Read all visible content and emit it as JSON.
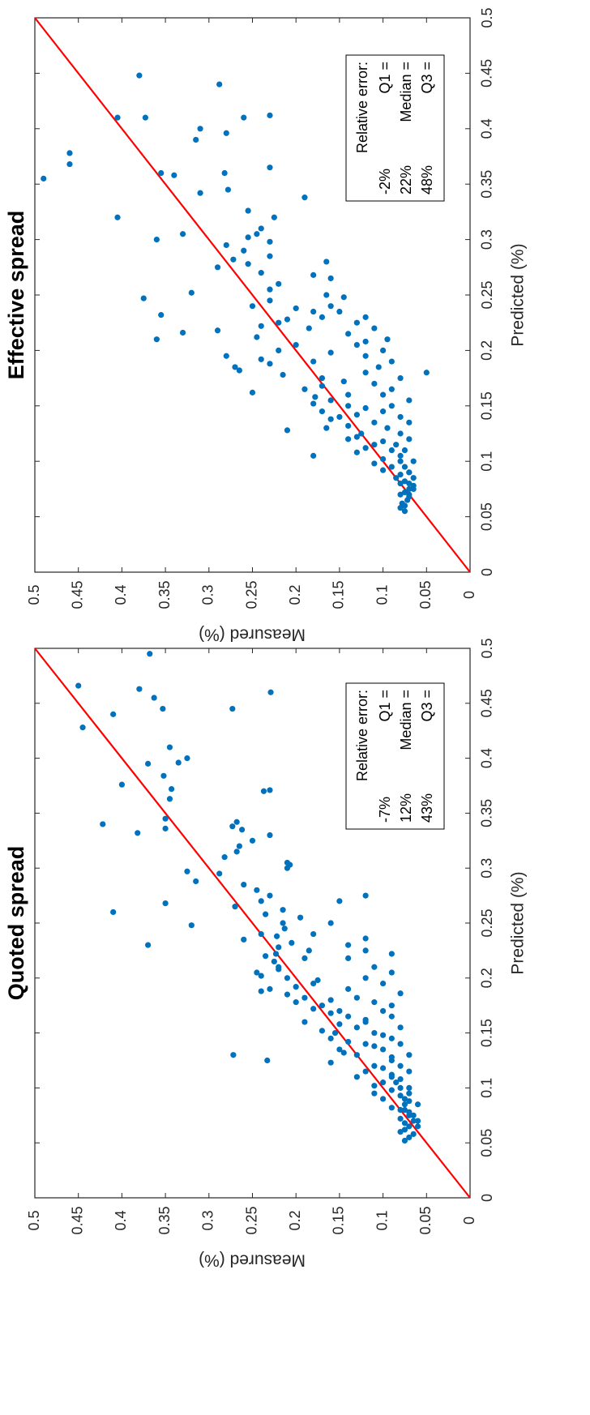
{
  "colors": {
    "points": "#0072BD",
    "line": "#FF0000",
    "axis": "#262626",
    "box_border": "#000000"
  },
  "chart_data": [
    {
      "type": "scatter",
      "title": "Quoted spread",
      "xlabel": "Predicted (%)",
      "ylabel": "Measured (%)",
      "xlim": [
        0,
        0.5
      ],
      "ylim": [
        0,
        0.5
      ],
      "x_ticks": [
        "0",
        "0.05",
        "0.1",
        "0.15",
        "0.2",
        "0.25",
        "0.3",
        "0.35",
        "0.4",
        "0.45",
        "0.5"
      ],
      "y_ticks": [
        "0",
        "0.05",
        "0.1",
        "0.15",
        "0.2",
        "0.25",
        "0.3",
        "0.35",
        "0.4",
        "0.45",
        "0.5"
      ],
      "reference_line": {
        "from": [
          0,
          0
        ],
        "to": [
          0.5,
          0.5
        ]
      },
      "relative_error_box": {
        "heading": "Relative error:",
        "rows": [
          {
            "label": "Q1 =",
            "value": "-7%"
          },
          {
            "label": "Median =",
            "value": "12%"
          },
          {
            "label": "Q3 =",
            "value": "43%"
          }
        ]
      },
      "points": [
        [
          0.495,
          0.368
        ],
        [
          0.466,
          0.45
        ],
        [
          0.46,
          0.229
        ],
        [
          0.463,
          0.38
        ],
        [
          0.455,
          0.363
        ],
        [
          0.445,
          0.353
        ],
        [
          0.445,
          0.273
        ],
        [
          0.44,
          0.41
        ],
        [
          0.428,
          0.445
        ],
        [
          0.41,
          0.345
        ],
        [
          0.4,
          0.325
        ],
        [
          0.396,
          0.335
        ],
        [
          0.395,
          0.37
        ],
        [
          0.384,
          0.352
        ],
        [
          0.376,
          0.4
        ],
        [
          0.372,
          0.343
        ],
        [
          0.37,
          0.237
        ],
        [
          0.371,
          0.23
        ],
        [
          0.363,
          0.345
        ],
        [
          0.345,
          0.35
        ],
        [
          0.342,
          0.268
        ],
        [
          0.34,
          0.422
        ],
        [
          0.338,
          0.273
        ],
        [
          0.335,
          0.262
        ],
        [
          0.332,
          0.382
        ],
        [
          0.336,
          0.35
        ],
        [
          0.33,
          0.23
        ],
        [
          0.325,
          0.25
        ],
        [
          0.32,
          0.265
        ],
        [
          0.315,
          0.268
        ],
        [
          0.31,
          0.282
        ],
        [
          0.305,
          0.21
        ],
        [
          0.303,
          0.207
        ],
        [
          0.3,
          0.21
        ],
        [
          0.297,
          0.325
        ],
        [
          0.295,
          0.288
        ],
        [
          0.288,
          0.315
        ],
        [
          0.285,
          0.26
        ],
        [
          0.28,
          0.245
        ],
        [
          0.275,
          0.23
        ],
        [
          0.27,
          0.24
        ],
        [
          0.268,
          0.35
        ],
        [
          0.265,
          0.27
        ],
        [
          0.262,
          0.215
        ],
        [
          0.26,
          0.41
        ],
        [
          0.258,
          0.235
        ],
        [
          0.255,
          0.195
        ],
        [
          0.25,
          0.215
        ],
        [
          0.248,
          0.32
        ],
        [
          0.245,
          0.213
        ],
        [
          0.24,
          0.24
        ],
        [
          0.238,
          0.222
        ],
        [
          0.235,
          0.26
        ],
        [
          0.232,
          0.205
        ],
        [
          0.23,
          0.37
        ],
        [
          0.228,
          0.22
        ],
        [
          0.225,
          0.185
        ],
        [
          0.222,
          0.223
        ],
        [
          0.22,
          0.235
        ],
        [
          0.218,
          0.19
        ],
        [
          0.215,
          0.225
        ],
        [
          0.21,
          0.22
        ],
        [
          0.208,
          0.22
        ],
        [
          0.205,
          0.245
        ],
        [
          0.202,
          0.24
        ],
        [
          0.2,
          0.21
        ],
        [
          0.198,
          0.175
        ],
        [
          0.195,
          0.18
        ],
        [
          0.192,
          0.2
        ],
        [
          0.19,
          0.23
        ],
        [
          0.188,
          0.24
        ],
        [
          0.185,
          0.21
        ],
        [
          0.182,
          0.19
        ],
        [
          0.18,
          0.16
        ],
        [
          0.178,
          0.2
        ],
        [
          0.175,
          0.17
        ],
        [
          0.172,
          0.18
        ],
        [
          0.17,
          0.15
        ],
        [
          0.168,
          0.16
        ],
        [
          0.165,
          0.14
        ],
        [
          0.162,
          0.12
        ],
        [
          0.16,
          0.19
        ],
        [
          0.158,
          0.15
        ],
        [
          0.155,
          0.13
        ],
        [
          0.152,
          0.17
        ],
        [
          0.15,
          0.155
        ],
        [
          0.148,
          0.1
        ],
        [
          0.145,
          0.16
        ],
        [
          0.142,
          0.14
        ],
        [
          0.14,
          0.12
        ],
        [
          0.138,
          0.11
        ],
        [
          0.135,
          0.15
        ],
        [
          0.132,
          0.145
        ],
        [
          0.13,
          0.13
        ],
        [
          0.128,
          0.09
        ],
        [
          0.125,
          0.233
        ],
        [
          0.123,
          0.16
        ],
        [
          0.12,
          0.11
        ],
        [
          0.118,
          0.1
        ],
        [
          0.115,
          0.12
        ],
        [
          0.112,
          0.09
        ],
        [
          0.11,
          0.13
        ],
        [
          0.108,
          0.08
        ],
        [
          0.105,
          0.1
        ],
        [
          0.102,
          0.11
        ],
        [
          0.1,
          0.07
        ],
        [
          0.098,
          0.09
        ],
        [
          0.095,
          0.11
        ],
        [
          0.093,
          0.08
        ],
        [
          0.09,
          0.1
        ],
        [
          0.088,
          0.07
        ],
        [
          0.085,
          0.075
        ],
        [
          0.082,
          0.09
        ],
        [
          0.08,
          0.08
        ],
        [
          0.078,
          0.07
        ],
        [
          0.075,
          0.065
        ],
        [
          0.072,
          0.08
        ],
        [
          0.07,
          0.06
        ],
        [
          0.068,
          0.075
        ],
        [
          0.065,
          0.07
        ],
        [
          0.062,
          0.075
        ],
        [
          0.06,
          0.08
        ],
        [
          0.058,
          0.065
        ],
        [
          0.055,
          0.07
        ],
        [
          0.052,
          0.075
        ],
        [
          0.13,
          0.272
        ],
        [
          0.25,
          0.16
        ],
        [
          0.27,
          0.15
        ],
        [
          0.275,
          0.12
        ],
        [
          0.24,
          0.18
        ],
        [
          0.236,
          0.12
        ],
        [
          0.23,
          0.14
        ],
        [
          0.225,
          0.12
        ],
        [
          0.222,
          0.09
        ],
        [
          0.218,
          0.14
        ],
        [
          0.21,
          0.11
        ],
        [
          0.205,
          0.09
        ],
        [
          0.2,
          0.12
        ],
        [
          0.195,
          0.1
        ],
        [
          0.19,
          0.14
        ],
        [
          0.186,
          0.08
        ],
        [
          0.182,
          0.13
        ],
        [
          0.178,
          0.11
        ],
        [
          0.175,
          0.09
        ],
        [
          0.17,
          0.1
        ],
        [
          0.165,
          0.09
        ],
        [
          0.16,
          0.12
        ],
        [
          0.155,
          0.08
        ],
        [
          0.15,
          0.11
        ],
        [
          0.145,
          0.09
        ],
        [
          0.14,
          0.08
        ],
        [
          0.135,
          0.1
        ],
        [
          0.13,
          0.07
        ],
        [
          0.125,
          0.09
        ],
        [
          0.12,
          0.08
        ],
        [
          0.115,
          0.07
        ],
        [
          0.11,
          0.09
        ],
        [
          0.105,
          0.085
        ],
        [
          0.1,
          0.08
        ],
        [
          0.095,
          0.07
        ],
        [
          0.09,
          0.075
        ],
        [
          0.085,
          0.06
        ],
        [
          0.08,
          0.075
        ],
        [
          0.075,
          0.07
        ],
        [
          0.07,
          0.065
        ],
        [
          0.065,
          0.06
        ]
      ]
    },
    {
      "type": "scatter",
      "title": "Effective spread",
      "xlabel": "Predicted (%)",
      "ylabel": "Measured (%)",
      "xlim": [
        0,
        0.5
      ],
      "ylim": [
        0,
        0.5
      ],
      "x_ticks": [
        "0",
        "0.05",
        "0.1",
        "0.15",
        "0.2",
        "0.25",
        "0.3",
        "0.35",
        "0.4",
        "0.45",
        "0.5"
      ],
      "y_ticks": [
        "0",
        "0.05",
        "0.1",
        "0.15",
        "0.2",
        "0.25",
        "0.3",
        "0.35",
        "0.4",
        "0.45",
        "0.5"
      ],
      "reference_line": {
        "from": [
          0,
          0
        ],
        "to": [
          0.5,
          0.5
        ]
      },
      "relative_error_box": {
        "heading": "Relative error:",
        "rows": [
          {
            "label": "Q1 =",
            "value": "-2%"
          },
          {
            "label": "Median =",
            "value": "22%"
          },
          {
            "label": "Q3 =",
            "value": "48%"
          }
        ]
      },
      "points": [
        [
          0.448,
          0.38
        ],
        [
          0.44,
          0.288
        ],
        [
          0.412,
          0.23
        ],
        [
          0.41,
          0.405
        ],
        [
          0.41,
          0.373
        ],
        [
          0.41,
          0.26
        ],
        [
          0.4,
          0.31
        ],
        [
          0.396,
          0.28
        ],
        [
          0.39,
          0.315
        ],
        [
          0.378,
          0.46
        ],
        [
          0.368,
          0.46
        ],
        [
          0.365,
          0.23
        ],
        [
          0.36,
          0.355
        ],
        [
          0.36,
          0.282
        ],
        [
          0.358,
          0.34
        ],
        [
          0.355,
          0.49
        ],
        [
          0.345,
          0.278
        ],
        [
          0.342,
          0.31
        ],
        [
          0.338,
          0.19
        ],
        [
          0.326,
          0.255
        ],
        [
          0.32,
          0.405
        ],
        [
          0.32,
          0.225
        ],
        [
          0.31,
          0.24
        ],
        [
          0.305,
          0.33
        ],
        [
          0.305,
          0.245
        ],
        [
          0.302,
          0.255
        ],
        [
          0.3,
          0.36
        ],
        [
          0.298,
          0.23
        ],
        [
          0.295,
          0.28
        ],
        [
          0.29,
          0.26
        ],
        [
          0.285,
          0.23
        ],
        [
          0.282,
          0.272
        ],
        [
          0.28,
          0.165
        ],
        [
          0.278,
          0.255
        ],
        [
          0.275,
          0.29
        ],
        [
          0.27,
          0.24
        ],
        [
          0.268,
          0.18
        ],
        [
          0.265,
          0.16
        ],
        [
          0.26,
          0.22
        ],
        [
          0.255,
          0.23
        ],
        [
          0.252,
          0.32
        ],
        [
          0.25,
          0.165
        ],
        [
          0.248,
          0.145
        ],
        [
          0.247,
          0.375
        ],
        [
          0.245,
          0.23
        ],
        [
          0.24,
          0.25
        ],
        [
          0.238,
          0.2
        ],
        [
          0.235,
          0.18
        ],
        [
          0.232,
          0.355
        ],
        [
          0.23,
          0.17
        ],
        [
          0.228,
          0.21
        ],
        [
          0.225,
          0.22
        ],
        [
          0.222,
          0.24
        ],
        [
          0.22,
          0.185
        ],
        [
          0.218,
          0.29
        ],
        [
          0.216,
          0.33
        ],
        [
          0.212,
          0.245
        ],
        [
          0.21,
          0.36
        ],
        [
          0.208,
          0.12
        ],
        [
          0.205,
          0.2
        ],
        [
          0.2,
          0.22
        ],
        [
          0.198,
          0.16
        ],
        [
          0.195,
          0.28
        ],
        [
          0.192,
          0.24
        ],
        [
          0.19,
          0.18
        ],
        [
          0.188,
          0.23
        ],
        [
          0.185,
          0.27
        ],
        [
          0.182,
          0.265
        ],
        [
          0.18,
          0.05
        ],
        [
          0.178,
          0.215
        ],
        [
          0.175,
          0.17
        ],
        [
          0.172,
          0.145
        ],
        [
          0.168,
          0.17
        ],
        [
          0.165,
          0.19
        ],
        [
          0.162,
          0.25
        ],
        [
          0.16,
          0.14
        ],
        [
          0.158,
          0.178
        ],
        [
          0.155,
          0.16
        ],
        [
          0.152,
          0.18
        ],
        [
          0.15,
          0.14
        ],
        [
          0.148,
          0.12
        ],
        [
          0.145,
          0.17
        ],
        [
          0.142,
          0.13
        ],
        [
          0.14,
          0.15
        ],
        [
          0.138,
          0.16
        ],
        [
          0.135,
          0.11
        ],
        [
          0.132,
          0.14
        ],
        [
          0.13,
          0.165
        ],
        [
          0.128,
          0.21
        ],
        [
          0.125,
          0.125
        ],
        [
          0.122,
          0.13
        ],
        [
          0.12,
          0.14
        ],
        [
          0.118,
          0.1
        ],
        [
          0.115,
          0.11
        ],
        [
          0.112,
          0.12
        ],
        [
          0.11,
          0.09
        ],
        [
          0.108,
          0.13
        ],
        [
          0.105,
          0.18
        ],
        [
          0.102,
          0.1
        ],
        [
          0.1,
          0.08
        ],
        [
          0.098,
          0.11
        ],
        [
          0.095,
          0.09
        ],
        [
          0.092,
          0.1
        ],
        [
          0.09,
          0.07
        ],
        [
          0.088,
          0.08
        ],
        [
          0.085,
          0.085
        ],
        [
          0.082,
          0.075
        ],
        [
          0.08,
          0.08
        ],
        [
          0.078,
          0.065
        ],
        [
          0.075,
          0.07
        ],
        [
          0.072,
          0.075
        ],
        [
          0.07,
          0.08
        ],
        [
          0.068,
          0.07
        ],
        [
          0.065,
          0.072
        ],
        [
          0.062,
          0.078
        ],
        [
          0.06,
          0.075
        ],
        [
          0.058,
          0.08
        ],
        [
          0.055,
          0.075
        ],
        [
          0.24,
          0.16
        ],
        [
          0.235,
          0.15
        ],
        [
          0.23,
          0.12
        ],
        [
          0.225,
          0.13
        ],
        [
          0.22,
          0.11
        ],
        [
          0.215,
          0.14
        ],
        [
          0.21,
          0.095
        ],
        [
          0.205,
          0.13
        ],
        [
          0.2,
          0.1
        ],
        [
          0.195,
          0.12
        ],
        [
          0.19,
          0.09
        ],
        [
          0.185,
          0.105
        ],
        [
          0.18,
          0.12
        ],
        [
          0.175,
          0.08
        ],
        [
          0.17,
          0.11
        ],
        [
          0.165,
          0.09
        ],
        [
          0.16,
          0.1
        ],
        [
          0.155,
          0.07
        ],
        [
          0.15,
          0.09
        ],
        [
          0.145,
          0.1
        ],
        [
          0.14,
          0.08
        ],
        [
          0.135,
          0.07
        ],
        [
          0.13,
          0.095
        ],
        [
          0.125,
          0.08
        ],
        [
          0.12,
          0.07
        ],
        [
          0.115,
          0.085
        ],
        [
          0.11,
          0.075
        ],
        [
          0.105,
          0.08
        ],
        [
          0.1,
          0.065
        ],
        [
          0.095,
          0.075
        ],
        [
          0.09,
          0.07
        ],
        [
          0.085,
          0.065
        ],
        [
          0.08,
          0.07
        ],
        [
          0.075,
          0.065
        ],
        [
          0.07,
          0.07
        ]
      ]
    }
  ]
}
